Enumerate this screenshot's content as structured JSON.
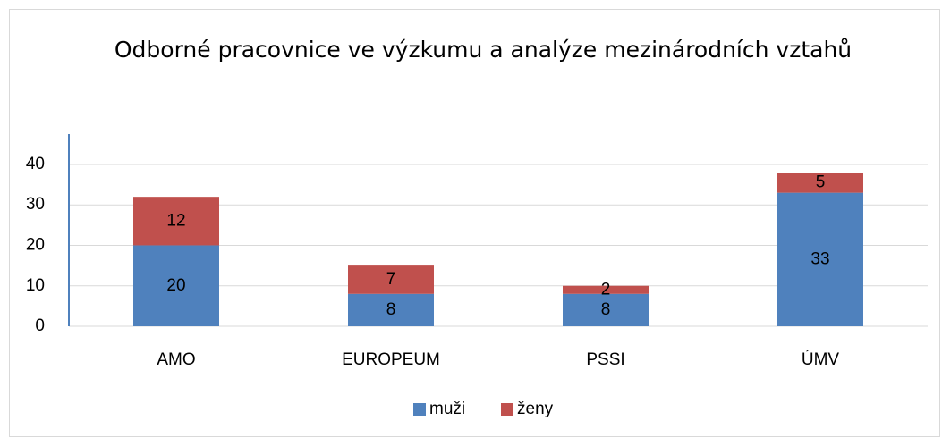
{
  "chart_data": {
    "type": "stacked_bar",
    "title": "Odborné pracovnice ve výzkumu a analýze mezinárodních vztahů",
    "categories": [
      "AMO",
      "EUROPEUM",
      "PSSI",
      "ÚMV"
    ],
    "series": [
      {
        "name": "muži",
        "color": "#4f81bd",
        "values": [
          20,
          8,
          8,
          33
        ]
      },
      {
        "name": "ženy",
        "color": "#c0504d",
        "values": [
          12,
          7,
          2,
          5
        ]
      }
    ],
    "ylim": [
      0,
      47.5
    ],
    "yticks": [
      0,
      10,
      20,
      30,
      40
    ],
    "grid": true,
    "legend": "bottom"
  }
}
